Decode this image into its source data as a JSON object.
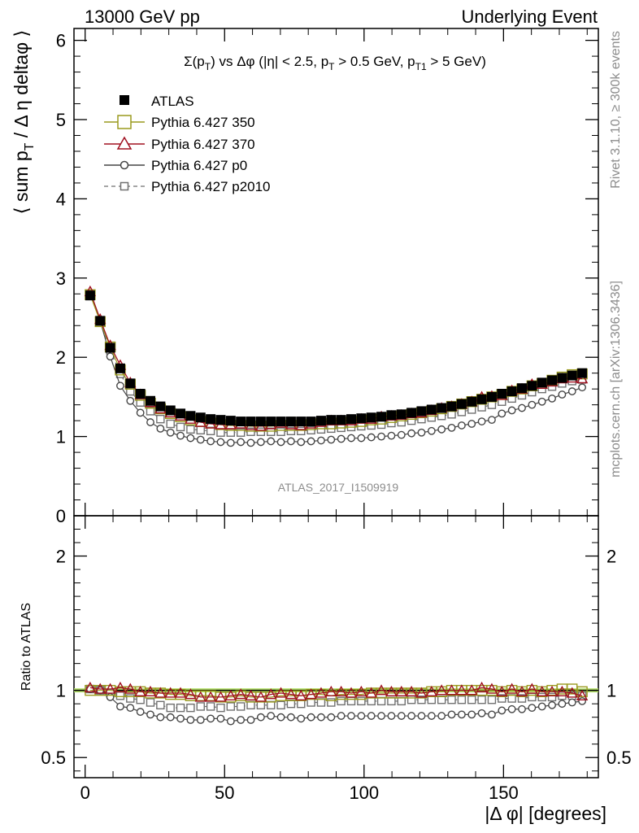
{
  "header": {
    "left": "13000 GeV pp",
    "right": "Underlying Event"
  },
  "side_labels": {
    "rivet": "Rivet 3.1.10, ≥ 300k events",
    "mcplots": "mcplots.cern.ch [arXiv:1306.3436]"
  },
  "analysis_tag": "ATLAS_2017_I1509919",
  "colors": {
    "atlas": "#000000",
    "p350": "#9a9a1e",
    "p370": "#a01020",
    "p0": "#454545",
    "p2010": "#707070",
    "band": "#b6e36b"
  },
  "chart_data": [
    {
      "type": "scatter",
      "panel": "main",
      "title": "Σ(p_T) vs Δφ (|η| < 2.5, p_T > 0.5 GeV, p_T1 > 5 GeV)",
      "title_parts": {
        "a": "Σ(p",
        "a_sub": "T",
        "b": ") vs Δφ (|η| < 2.5, p",
        "b_sub": "T",
        "c": " > 0.5 GeV, p",
        "c_sub": "T1",
        "d": " > 5 GeV)"
      },
      "ylabel": "⟨ sum p_T / Δ η deltaφ ⟩",
      "ylabel_parts": {
        "a": "⟨ sum p",
        "sub": "T",
        "b": " / Δ η deltaφ ⟩"
      },
      "xlim": [
        -4,
        184
      ],
      "ylim": [
        0,
        6.15
      ],
      "yticks": [
        "0",
        "1",
        "2",
        "3",
        "4",
        "5",
        "6"
      ],
      "xticks": [
        "0",
        "50",
        "100",
        "150"
      ],
      "legend_position": "top-left",
      "x": [
        1.8,
        5.4,
        9.0,
        12.6,
        16.2,
        19.8,
        23.4,
        27.0,
        30.6,
        34.2,
        37.8,
        41.4,
        45.0,
        48.6,
        52.2,
        55.8,
        59.4,
        63.0,
        66.6,
        70.2,
        73.8,
        77.4,
        81.0,
        84.6,
        88.2,
        91.8,
        95.4,
        99.0,
        102.6,
        106.2,
        109.8,
        113.4,
        117.0,
        120.6,
        124.2,
        127.8,
        131.4,
        135.0,
        138.6,
        142.2,
        145.8,
        149.4,
        153.0,
        156.6,
        160.2,
        163.8,
        167.4,
        171.0,
        174.6,
        178.2
      ],
      "series": [
        {
          "name": "ATLAS",
          "marker": "filled-square",
          "values": [
            2.78,
            2.46,
            2.12,
            1.86,
            1.67,
            1.54,
            1.45,
            1.38,
            1.33,
            1.29,
            1.26,
            1.24,
            1.22,
            1.21,
            1.2,
            1.19,
            1.19,
            1.19,
            1.19,
            1.19,
            1.19,
            1.19,
            1.19,
            1.2,
            1.21,
            1.21,
            1.22,
            1.23,
            1.24,
            1.25,
            1.27,
            1.28,
            1.3,
            1.32,
            1.34,
            1.36,
            1.38,
            1.41,
            1.44,
            1.47,
            1.5,
            1.54,
            1.57,
            1.61,
            1.64,
            1.68,
            1.71,
            1.74,
            1.77,
            1.8
          ]
        },
        {
          "name": "Pythia 6.427 350",
          "marker": "open-square",
          "values": [
            2.79,
            2.45,
            2.13,
            1.84,
            1.66,
            1.52,
            1.42,
            1.35,
            1.29,
            1.25,
            1.21,
            1.19,
            1.17,
            1.15,
            1.14,
            1.14,
            1.13,
            1.13,
            1.13,
            1.14,
            1.14,
            1.14,
            1.15,
            1.16,
            1.16,
            1.17,
            1.18,
            1.19,
            1.21,
            1.22,
            1.24,
            1.26,
            1.28,
            1.3,
            1.32,
            1.35,
            1.38,
            1.41,
            1.44,
            1.47,
            1.5,
            1.53,
            1.57,
            1.6,
            1.64,
            1.67,
            1.71,
            1.75,
            1.78,
            1.79
          ]
        },
        {
          "name": "Pythia 6.427 370",
          "marker": "open-triangle",
          "values": [
            2.83,
            2.48,
            2.15,
            1.9,
            1.68,
            1.53,
            1.43,
            1.35,
            1.3,
            1.26,
            1.22,
            1.18,
            1.16,
            1.15,
            1.15,
            1.16,
            1.14,
            1.13,
            1.15,
            1.17,
            1.15,
            1.14,
            1.16,
            1.18,
            1.2,
            1.2,
            1.2,
            1.22,
            1.22,
            1.25,
            1.26,
            1.27,
            1.29,
            1.3,
            1.33,
            1.36,
            1.38,
            1.41,
            1.44,
            1.5,
            1.51,
            1.52,
            1.58,
            1.6,
            1.66,
            1.66,
            1.69,
            1.73,
            1.74,
            1.73
          ]
        },
        {
          "name": "Pythia 6.427 p0",
          "marker": "open-circle",
          "values": [
            2.8,
            2.46,
            2.01,
            1.64,
            1.45,
            1.3,
            1.18,
            1.1,
            1.05,
            1.01,
            0.98,
            0.96,
            0.94,
            0.93,
            0.92,
            0.93,
            0.92,
            0.93,
            0.94,
            0.93,
            0.94,
            0.93,
            0.94,
            0.95,
            0.96,
            0.97,
            0.98,
            0.98,
            0.99,
            1.0,
            1.01,
            1.02,
            1.04,
            1.05,
            1.07,
            1.09,
            1.11,
            1.14,
            1.16,
            1.19,
            1.21,
            1.29,
            1.33,
            1.36,
            1.4,
            1.44,
            1.48,
            1.53,
            1.57,
            1.62
          ]
        },
        {
          "name": "Pythia 6.427 p2010",
          "marker": "open-square-dashed",
          "values": [
            2.8,
            2.46,
            2.09,
            1.79,
            1.57,
            1.43,
            1.32,
            1.22,
            1.16,
            1.12,
            1.09,
            1.08,
            1.07,
            1.05,
            1.05,
            1.05,
            1.06,
            1.06,
            1.06,
            1.06,
            1.07,
            1.07,
            1.08,
            1.09,
            1.1,
            1.11,
            1.12,
            1.13,
            1.14,
            1.15,
            1.17,
            1.18,
            1.2,
            1.22,
            1.24,
            1.26,
            1.28,
            1.31,
            1.34,
            1.37,
            1.4,
            1.44,
            1.48,
            1.52,
            1.56,
            1.6,
            1.63,
            1.67,
            1.7,
            1.72
          ]
        }
      ]
    },
    {
      "type": "scatter",
      "panel": "ratio",
      "ylabel": "Ratio to ATLAS",
      "xlabel": "|Δ φ| [degrees]",
      "xlim": [
        -4,
        184
      ],
      "ylim": [
        0.35,
        2.3
      ],
      "yticks": [
        "0.5",
        "1",
        "2"
      ],
      "xticks": [
        "0",
        "50",
        "100",
        "150"
      ],
      "reference_band": [
        0.985,
        1.015
      ],
      "series": [
        {
          "name": "Pythia 6.427 350",
          "values": [
            1.0,
            1.0,
            1.0,
            0.99,
            0.99,
            0.99,
            0.98,
            0.98,
            0.97,
            0.97,
            0.96,
            0.96,
            0.96,
            0.95,
            0.95,
            0.96,
            0.95,
            0.95,
            0.95,
            0.96,
            0.96,
            0.96,
            0.97,
            0.97,
            0.96,
            0.97,
            0.97,
            0.97,
            0.98,
            0.98,
            0.98,
            0.98,
            0.98,
            0.98,
            0.99,
            0.99,
            1.0,
            1.0,
            1.0,
            1.0,
            1.0,
            0.99,
            1.0,
            0.99,
            1.0,
            0.99,
            1.0,
            1.01,
            1.01,
            0.99
          ]
        },
        {
          "name": "Pythia 6.427 370",
          "values": [
            1.02,
            1.01,
            1.01,
            1.02,
            1.01,
            0.99,
            0.99,
            0.98,
            0.98,
            0.98,
            0.97,
            0.95,
            0.95,
            0.95,
            0.96,
            0.97,
            0.96,
            0.95,
            0.97,
            0.98,
            0.97,
            0.96,
            0.97,
            0.98,
            0.99,
            0.99,
            0.98,
            0.99,
            0.98,
            1.0,
            0.99,
            0.99,
            0.99,
            0.98,
            0.99,
            1.0,
            1.0,
            1.0,
            1.0,
            1.02,
            1.01,
            0.99,
            1.01,
            0.99,
            1.01,
            0.99,
            0.99,
            0.99,
            0.98,
            0.96
          ]
        },
        {
          "name": "Pythia 6.427 p0",
          "values": [
            1.01,
            1.0,
            0.95,
            0.88,
            0.87,
            0.84,
            0.82,
            0.8,
            0.8,
            0.79,
            0.78,
            0.78,
            0.79,
            0.79,
            0.77,
            0.78,
            0.78,
            0.8,
            0.81,
            0.8,
            0.8,
            0.79,
            0.8,
            0.8,
            0.8,
            0.81,
            0.81,
            0.81,
            0.81,
            0.81,
            0.81,
            0.81,
            0.81,
            0.81,
            0.81,
            0.81,
            0.82,
            0.82,
            0.82,
            0.83,
            0.82,
            0.85,
            0.86,
            0.86,
            0.87,
            0.88,
            0.89,
            0.9,
            0.91,
            0.92
          ]
        },
        {
          "name": "Pythia 6.427 p2010",
          "values": [
            1.01,
            1.0,
            0.98,
            0.96,
            0.94,
            0.93,
            0.91,
            0.89,
            0.87,
            0.87,
            0.87,
            0.88,
            0.88,
            0.87,
            0.88,
            0.88,
            0.89,
            0.89,
            0.89,
            0.89,
            0.9,
            0.9,
            0.91,
            0.91,
            0.91,
            0.92,
            0.92,
            0.92,
            0.92,
            0.92,
            0.92,
            0.92,
            0.93,
            0.93,
            0.93,
            0.93,
            0.93,
            0.93,
            0.93,
            0.93,
            0.93,
            0.94,
            0.94,
            0.94,
            0.95,
            0.95,
            0.95,
            0.96,
            0.96,
            0.96
          ]
        }
      ]
    }
  ]
}
